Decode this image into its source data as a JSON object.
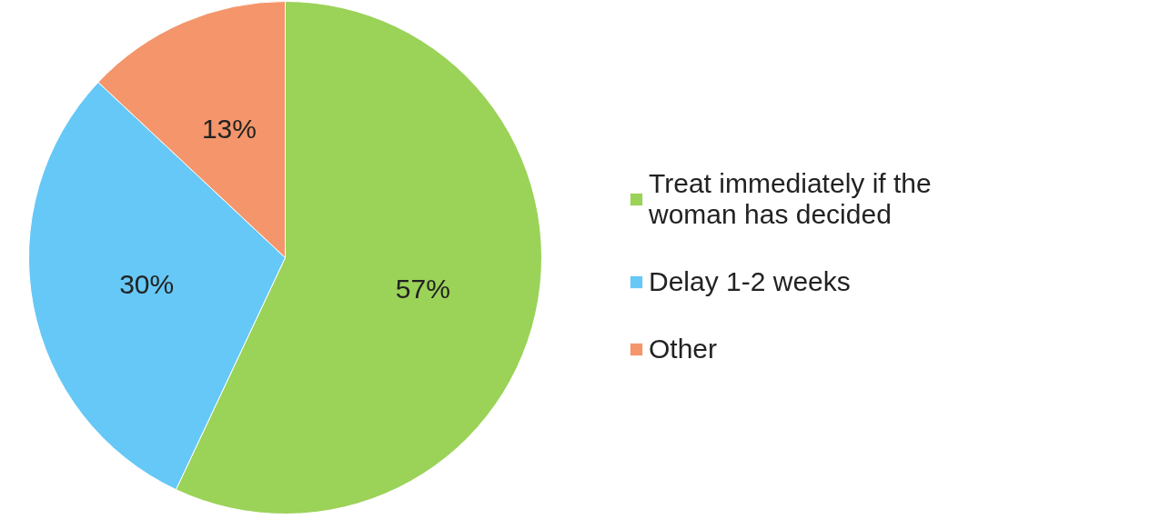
{
  "chart_data": {
    "type": "pie",
    "categories": [
      "Treat immediately if the woman has decided",
      "Delay 1-2 weeks",
      "Other"
    ],
    "values": [
      57,
      30,
      13
    ],
    "colors": [
      "#9bd258",
      "#66c8f6",
      "#f4956b"
    ],
    "value_labels": [
      "57%",
      "30%",
      "13%"
    ],
    "legend": "right"
  }
}
